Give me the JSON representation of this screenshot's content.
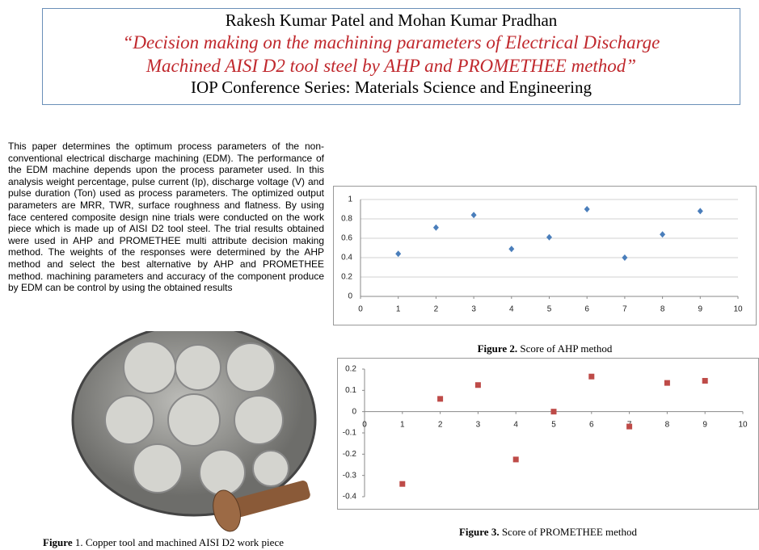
{
  "header": {
    "authors": "Rakesh Kumar Patel and Mohan Kumar Pradhan",
    "title_lines": [
      "“Decision making on the machining parameters of Electrical Discharge",
      "Machined AISI D2 tool steel by AHP and PROMETHEE method”"
    ],
    "journal": "IOP Conference Series: Materials Science and Engineering"
  },
  "abstract": "This paper determines the optimum process parameters of the non-conventional electrical discharge machining (EDM). The performance of the EDM machine depends upon the process parameter used. In this analysis weight percentage, pulse current (Ip), discharge voltage (V) and pulse duration (Ton) used as process parameters. The optimized output parameters are MRR, TWR, surface roughness and flatness. By using face centered composite design nine trials were conducted on the work piece which is made up of AISI D2 tool steel. The trial results obtained were used in AHP and PROMETHEE multi attribute decision making method. The weights of the responses were determined by the AHP method and select the best alternative by AHP and PROMETHEE method. machining parameters and accuracy of the component produce by EDM can be control by using the obtained results",
  "figure1": {
    "caption_label": "Figure",
    "caption_text": "1. Copper tool and machined AISI D2 work piece"
  },
  "chart_data": [
    {
      "type": "scatter",
      "caption_label": "Figure 2.",
      "caption_text": "Score of AHP method",
      "x": [
        1,
        2,
        3,
        4,
        5,
        6,
        7,
        8,
        9
      ],
      "values": [
        0.44,
        0.71,
        0.84,
        0.49,
        0.61,
        0.9,
        0.4,
        0.64,
        0.88
      ],
      "color": "#4a7ebb",
      "marker": "diamond",
      "xlim": [
        0,
        10
      ],
      "xticks": [
        0,
        1,
        2,
        3,
        4,
        5,
        6,
        7,
        8,
        9,
        10
      ],
      "ylim": [
        0,
        1
      ],
      "yticks": [
        0,
        0.2,
        0.4,
        0.6,
        0.8,
        1
      ],
      "grid": true
    },
    {
      "type": "scatter",
      "caption_label": "Figure 3.",
      "caption_text": "Score of PROMETHEE method",
      "x": [
        1,
        2,
        3,
        4,
        5,
        6,
        7,
        8,
        9
      ],
      "values": [
        -0.34,
        0.06,
        0.125,
        -0.225,
        0.0,
        0.165,
        -0.07,
        0.135,
        0.145
      ],
      "color": "#be4b48",
      "marker": "square",
      "xlim": [
        0,
        10
      ],
      "xticks": [
        0,
        1,
        2,
        3,
        4,
        5,
        6,
        7,
        8,
        9,
        10
      ],
      "ylim": [
        -0.4,
        0.2
      ],
      "yticks": [
        -0.4,
        -0.3,
        -0.2,
        -0.1,
        0,
        0.1,
        0.2
      ],
      "grid": false
    }
  ]
}
